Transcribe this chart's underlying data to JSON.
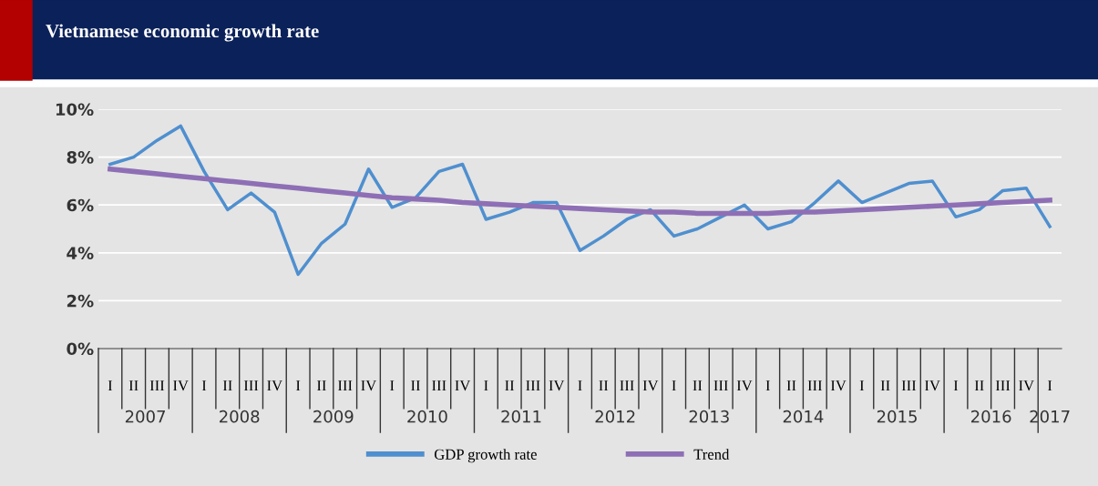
{
  "chart_data": {
    "type": "line",
    "title": "Vietnamese economic growth rate",
    "categories": [
      "I",
      "II",
      "III",
      "IV",
      "I",
      "II",
      "III",
      "IV",
      "I",
      "II",
      "III",
      "IV",
      "I",
      "II",
      "III",
      "IV",
      "I",
      "II",
      "III",
      "IV",
      "I",
      "II",
      "III",
      "IV",
      "I",
      "II",
      "III",
      "IV",
      "I",
      "II",
      "III",
      "IV",
      "I",
      "II",
      "III",
      "IV",
      "I",
      "II",
      "III",
      "IV",
      "I"
    ],
    "annotations": [
      "2007",
      "2008",
      "2009",
      "2010",
      "2011",
      "2012",
      "2013",
      "2014",
      "2015",
      "2016",
      "2017"
    ],
    "series": [
      {
        "name": "GDP growth rate",
        "color": "#4f8fcf",
        "values": [
          7.7,
          8.0,
          8.7,
          9.3,
          7.4,
          5.8,
          6.5,
          5.7,
          3.1,
          4.4,
          5.2,
          7.5,
          5.9,
          6.3,
          7.4,
          7.7,
          5.4,
          5.7,
          6.1,
          6.1,
          4.1,
          4.7,
          5.4,
          5.8,
          4.7,
          5.0,
          5.5,
          6.0,
          5.0,
          5.3,
          6.1,
          7.0,
          6.1,
          6.5,
          6.9,
          7.0,
          5.5,
          5.8,
          6.6,
          6.7,
          5.1
        ]
      },
      {
        "name": "Trend",
        "color": "#8e6fb5",
        "values": [
          7.5,
          7.4,
          7.3,
          7.2,
          7.1,
          7.0,
          6.9,
          6.8,
          6.7,
          6.6,
          6.5,
          6.4,
          6.3,
          6.25,
          6.2,
          6.1,
          6.05,
          6.0,
          5.95,
          5.9,
          5.85,
          5.8,
          5.75,
          5.7,
          5.7,
          5.65,
          5.65,
          5.65,
          5.65,
          5.7,
          5.7,
          5.75,
          5.8,
          5.85,
          5.9,
          5.95,
          6.0,
          6.05,
          6.1,
          6.15,
          6.2
        ]
      }
    ],
    "ylim": [
      0,
      10
    ],
    "yticks": [
      {
        "value": 0,
        "label": "0%"
      },
      {
        "value": 2,
        "label": "2%"
      },
      {
        "value": 4,
        "label": "4%"
      },
      {
        "value": 6,
        "label": "6%"
      },
      {
        "value": 8,
        "label": "8%"
      },
      {
        "value": 10,
        "label": "10%"
      }
    ],
    "grid": "y",
    "legend": "bottom",
    "marker": "none",
    "line_style": "solid"
  }
}
